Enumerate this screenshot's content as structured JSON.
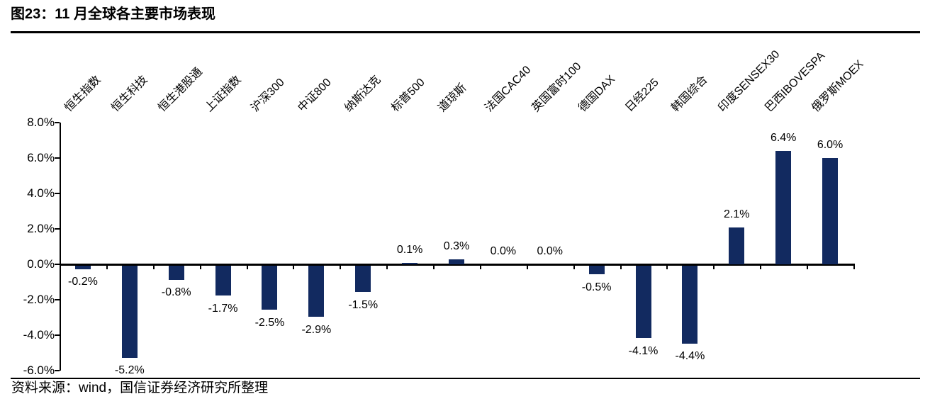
{
  "header": {
    "title": "图23：11 月全球各主要市场表现"
  },
  "footer": {
    "source": "资料来源：wind，国信证券经济研究所整理"
  },
  "chart_data": {
    "type": "bar",
    "title": "图23：11 月全球各主要市场表现",
    "categories": [
      "恒生指数",
      "恒生科技",
      "恒生港股通",
      "上证指数",
      "沪深300",
      "中证800",
      "纳斯达克",
      "标普500",
      "道琼斯",
      "法国CAC40",
      "英国富时100",
      "德国DAX",
      "日经225",
      "韩国综合",
      "印度SENSEX30",
      "巴西IBOVESPA",
      "俄罗斯MOEX"
    ],
    "values": [
      -0.2,
      -5.2,
      -0.8,
      -1.7,
      -2.5,
      -2.9,
      -1.5,
      0.1,
      0.3,
      0.0,
      0.0,
      -0.5,
      -4.1,
      -4.4,
      2.1,
      6.4,
      6.0
    ],
    "labels": [
      "-0.2%",
      "-5.2%",
      "-0.8%",
      "-1.7%",
      "-2.5%",
      "-2.9%",
      "-1.5%",
      "0.1%",
      "0.3%",
      "0.0%",
      "0.0%",
      "-0.5%",
      "-4.1%",
      "-4.4%",
      "2.1%",
      "6.4%",
      "6.0%"
    ],
    "xlabel": "",
    "ylabel": "",
    "ylim": [
      -6,
      8
    ],
    "ytick_values": [
      8,
      6,
      4,
      2,
      0,
      -2,
      -4,
      -6
    ],
    "ytick_labels": [
      "8.0%",
      "6.0%",
      "4.0%",
      "2.0%",
      "0.0%",
      "-2.0%",
      "-4.0%",
      "-6.0%"
    ],
    "grid": false,
    "legend": "none",
    "category_label_rotation_deg": 45,
    "bar_color": "#122A60",
    "axis_color": "#000000",
    "source": "资料来源：wind，国信证券经济研究所整理"
  }
}
